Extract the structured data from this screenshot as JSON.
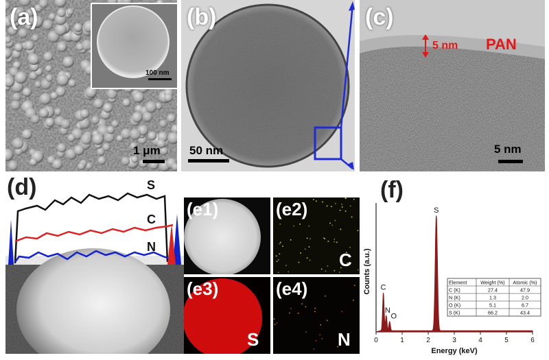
{
  "panels": {
    "a": {
      "label": "(a)",
      "scale": "1 μm",
      "inset_scale": "100 nm"
    },
    "b": {
      "label": "(b)",
      "scale": "50 nm"
    },
    "c": {
      "label": "(c)",
      "scale": "5 nm",
      "thickness": "5 nm",
      "layer": "PAN"
    },
    "d": {
      "label": "(d)",
      "line_S": "S",
      "line_C": "C",
      "line_N": "N"
    },
    "e1": {
      "label": "(e1)"
    },
    "e2": {
      "label": "(e2)",
      "element": "C"
    },
    "e3": {
      "label": "(e3)",
      "element": "S"
    },
    "e4": {
      "label": "(e4)",
      "element": "N"
    },
    "f": {
      "label": "(f)"
    }
  },
  "colors": {
    "S": "#111111",
    "C": "#dd2222",
    "N": "#1122cc",
    "spectrum": "#8b1a1a",
    "arrow": "#1f2bd6",
    "pan_text": "#e01a1a"
  },
  "chart_data": {
    "type": "area",
    "xlabel": "Energy (keV)",
    "ylabel": "Counts (a.u.)",
    "xlim": [
      0,
      6
    ],
    "xticks": [
      "0",
      "1",
      "2",
      "3",
      "4",
      "5",
      "6"
    ],
    "peaks": [
      {
        "name": "C",
        "x": 0.28,
        "height": 0.33
      },
      {
        "name": "N",
        "x": 0.39,
        "height": 0.13
      },
      {
        "name": "O",
        "x": 0.52,
        "height": 0.08
      },
      {
        "name": "S",
        "x": 2.31,
        "height": 1.0
      }
    ],
    "table": {
      "headers": [
        "Element",
        "Weight (%)",
        "Atomic (%)"
      ],
      "rows": [
        [
          "C (K)",
          "27.4",
          "47.9"
        ],
        [
          "N (K)",
          "1.3",
          "2.0"
        ],
        [
          "O (K)",
          "5.1",
          "6.7"
        ],
        [
          "S (K)",
          "66.2",
          "43.4"
        ]
      ]
    }
  }
}
